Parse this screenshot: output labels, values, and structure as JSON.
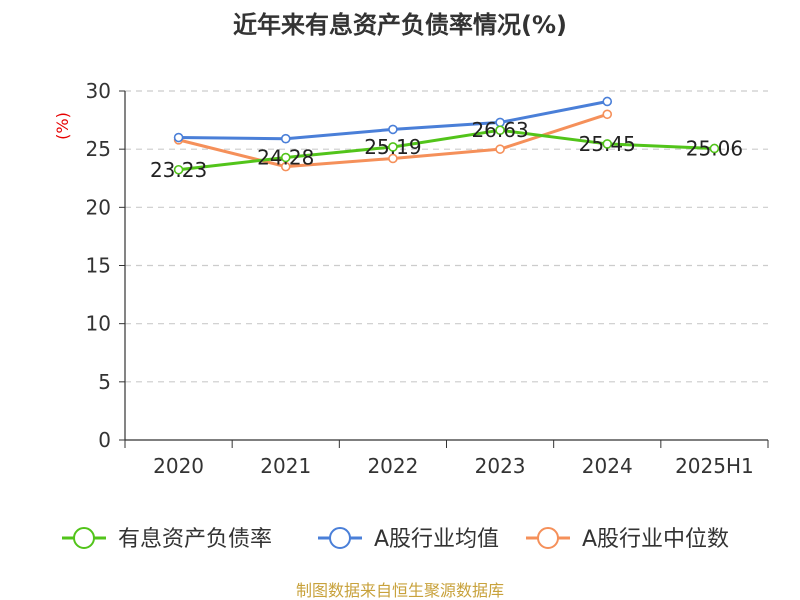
{
  "chart_data": {
    "type": "line",
    "title": "近年来有息资产负债率情况(%)",
    "ylabel": "(%)",
    "xlabel": "",
    "categories": [
      "2020",
      "2021",
      "2022",
      "2023",
      "2024",
      "2025H1"
    ],
    "ylim": [
      0,
      30
    ],
    "yticks": [
      0,
      5,
      10,
      15,
      20,
      25,
      30
    ],
    "grid": true,
    "legend_position": "bottom",
    "series": [
      {
        "name": "有息资产负债率",
        "color": "#52c41a",
        "values": [
          23.23,
          24.28,
          25.19,
          26.63,
          25.45,
          25.06
        ],
        "labels": [
          "23.23",
          "24.28",
          "25.19",
          "26.63",
          "25.45",
          "25.06"
        ]
      },
      {
        "name": "A股行业均值",
        "color": "#4a7fd8",
        "values": [
          26.0,
          25.9,
          26.7,
          27.3,
          29.1,
          null
        ],
        "labels": []
      },
      {
        "name": "A股行业中位数",
        "color": "#f5905a",
        "values": [
          25.8,
          23.5,
          24.2,
          25.0,
          28.0,
          null
        ],
        "labels": []
      }
    ],
    "source": "制图数据来自恒生聚源数据库"
  }
}
